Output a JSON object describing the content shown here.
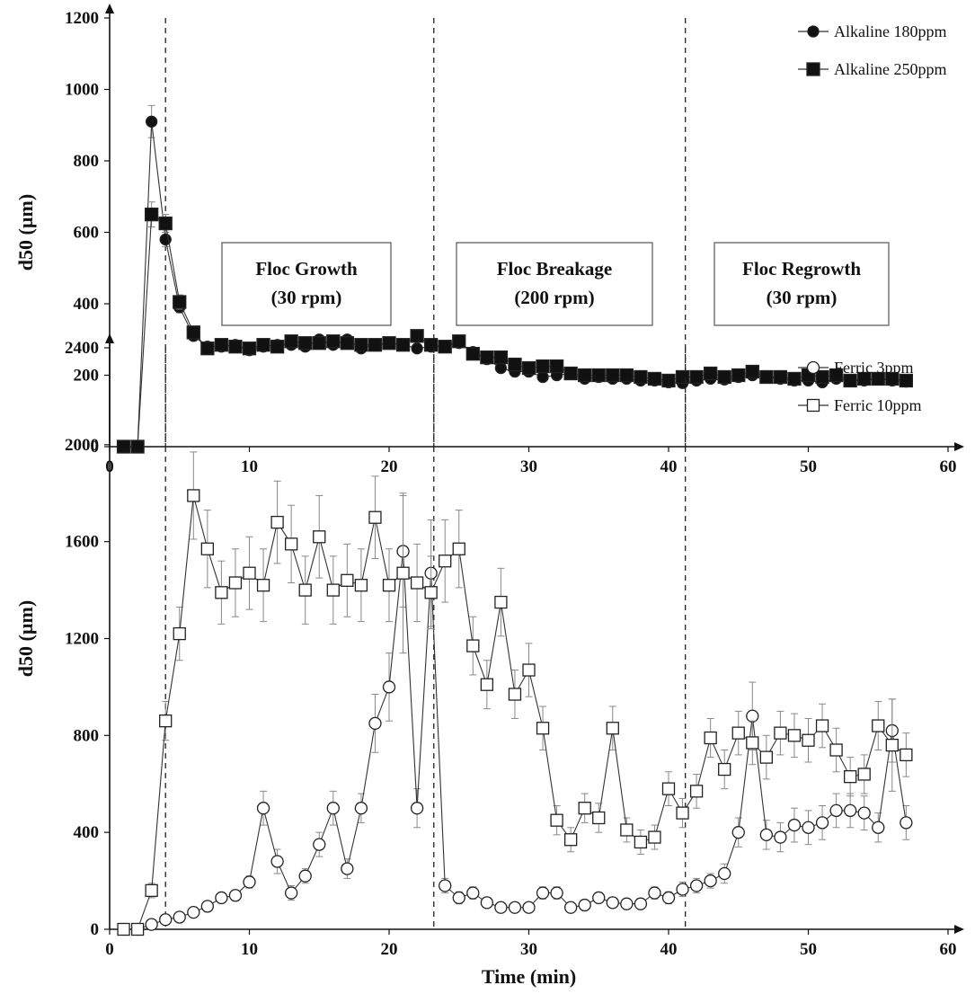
{
  "chart_data": [
    {
      "type": "line",
      "title": "",
      "xlabel": "",
      "ylabel": "d50 (µm)",
      "xlim": [
        0,
        60
      ],
      "ylim": [
        0,
        1200
      ],
      "xticks": [
        0,
        10,
        20,
        30,
        40,
        50,
        60
      ],
      "yticks": [
        0,
        200,
        400,
        600,
        800,
        1000,
        1200
      ],
      "grid": false,
      "legend": "top-right",
      "phase_lines_x": [
        4,
        23.2,
        41.2
      ],
      "annotations": [
        {
          "line1": "Floc Growth",
          "line2": "(30 rpm)"
        },
        {
          "line1": "Floc Breakage",
          "line2": "(200 rpm)"
        },
        {
          "line1": "Floc Regrowth",
          "line2": "(30 rpm)"
        }
      ],
      "x": [
        1,
        2,
        3,
        4,
        5,
        6,
        7,
        8,
        9,
        10,
        11,
        12,
        13,
        14,
        15,
        16,
        17,
        18,
        19,
        20,
        21,
        22,
        23,
        24,
        25,
        26,
        27,
        28,
        29,
        30,
        31,
        32,
        33,
        34,
        35,
        36,
        37,
        38,
        39,
        40,
        41,
        42,
        43,
        44,
        45,
        46,
        47,
        48,
        49,
        50,
        51,
        52,
        53,
        54,
        55,
        56,
        57
      ],
      "series": [
        {
          "name": "Alkaline 180ppm",
          "marker": "circle-filled",
          "values": [
            0,
            0,
            910,
            580,
            390,
            310,
            280,
            280,
            285,
            270,
            280,
            285,
            285,
            280,
            300,
            285,
            300,
            275,
            285,
            290,
            285,
            275,
            280,
            280,
            290,
            265,
            245,
            220,
            210,
            210,
            195,
            200,
            205,
            190,
            195,
            190,
            190,
            185,
            185,
            180,
            178,
            185,
            190,
            188,
            195,
            200,
            195,
            190,
            185,
            185,
            180,
            190,
            185,
            185,
            190,
            185,
            182
          ],
          "errors": [
            0,
            0,
            45,
            20,
            15,
            12,
            10,
            10,
            10,
            10,
            10,
            10,
            10,
            10,
            10,
            10,
            10,
            10,
            10,
            10,
            10,
            10,
            10,
            10,
            10,
            10,
            10,
            10,
            10,
            10,
            10,
            10,
            10,
            10,
            10,
            10,
            10,
            10,
            10,
            10,
            10,
            10,
            10,
            10,
            10,
            10,
            10,
            10,
            10,
            10,
            10,
            10,
            10,
            10,
            10,
            10,
            10
          ]
        },
        {
          "name": "Alkaline 250ppm",
          "marker": "square-filled",
          "values": [
            0,
            0,
            650,
            625,
            405,
            320,
            275,
            285,
            280,
            275,
            285,
            280,
            295,
            290,
            290,
            295,
            290,
            285,
            285,
            290,
            285,
            310,
            285,
            280,
            295,
            260,
            250,
            250,
            230,
            220,
            225,
            225,
            205,
            200,
            200,
            200,
            200,
            195,
            190,
            185,
            195,
            195,
            205,
            195,
            200,
            210,
            195,
            195,
            190,
            200,
            195,
            200,
            185,
            190,
            190,
            190,
            185
          ],
          "errors": [
            0,
            0,
            35,
            25,
            20,
            12,
            10,
            10,
            10,
            10,
            10,
            10,
            10,
            10,
            10,
            10,
            10,
            10,
            10,
            10,
            10,
            10,
            10,
            10,
            10,
            10,
            10,
            10,
            10,
            10,
            10,
            10,
            10,
            10,
            10,
            10,
            10,
            10,
            10,
            10,
            10,
            10,
            10,
            10,
            10,
            10,
            10,
            10,
            10,
            10,
            10,
            10,
            10,
            10,
            10,
            10,
            10
          ]
        }
      ]
    },
    {
      "type": "line",
      "title": "",
      "xlabel": "Time (min)",
      "ylabel": "d50 (µm)",
      "xlim": [
        0,
        60
      ],
      "ylim": [
        0,
        2400
      ],
      "xticks": [
        0,
        10,
        20,
        30,
        40,
        50,
        60
      ],
      "yticks": [
        0,
        400,
        800,
        1200,
        1600,
        2000,
        2400
      ],
      "grid": false,
      "legend": "top-right",
      "phase_lines_x": [
        4,
        23.2,
        41.2
      ],
      "x": [
        1,
        2,
        3,
        4,
        5,
        6,
        7,
        8,
        9,
        10,
        11,
        12,
        13,
        14,
        15,
        16,
        17,
        18,
        19,
        20,
        21,
        22,
        23,
        24,
        25,
        26,
        27,
        28,
        29,
        30,
        31,
        32,
        33,
        34,
        35,
        36,
        37,
        38,
        39,
        40,
        41,
        42,
        43,
        44,
        45,
        46,
        47,
        48,
        49,
        50,
        51,
        52,
        53,
        54,
        55,
        56,
        57
      ],
      "series": [
        {
          "name": "Ferric 3ppm",
          "marker": "circle-open",
          "values": [
            0,
            0,
            20,
            40,
            50,
            70,
            95,
            130,
            140,
            195,
            500,
            280,
            150,
            220,
            350,
            500,
            250,
            500,
            850,
            1000,
            1560,
            500,
            1470,
            180,
            130,
            150,
            110,
            90,
            90,
            90,
            150,
            150,
            90,
            100,
            130,
            110,
            105,
            105,
            150,
            130,
            165,
            180,
            200,
            230,
            400,
            880,
            390,
            380,
            430,
            420,
            440,
            490,
            490,
            480,
            420,
            820,
            440
          ],
          "errors": [
            0,
            0,
            10,
            10,
            10,
            10,
            15,
            20,
            20,
            25,
            70,
            50,
            30,
            30,
            50,
            70,
            40,
            60,
            120,
            140,
            230,
            80,
            220,
            30,
            25,
            25,
            20,
            15,
            15,
            15,
            25,
            25,
            15,
            15,
            20,
            20,
            20,
            20,
            25,
            25,
            30,
            30,
            30,
            40,
            60,
            140,
            60,
            60,
            70,
            70,
            70,
            70,
            70,
            70,
            60,
            130,
            70
          ]
        },
        {
          "name": "Ferric 10ppm",
          "marker": "square-open",
          "values": [
            0,
            0,
            160,
            860,
            1220,
            1790,
            1570,
            1390,
            1430,
            1470,
            1420,
            1680,
            1590,
            1400,
            1620,
            1400,
            1440,
            1420,
            1700,
            1420,
            1470,
            1430,
            1390,
            1520,
            1570,
            1170,
            1010,
            1350,
            970,
            1070,
            830,
            450,
            370,
            500,
            460,
            830,
            410,
            360,
            380,
            580,
            480,
            570,
            790,
            660,
            810,
            770,
            710,
            810,
            800,
            780,
            840,
            740,
            630,
            640,
            840,
            760,
            720
          ],
          "errors": [
            0,
            0,
            30,
            80,
            110,
            180,
            160,
            130,
            140,
            150,
            150,
            170,
            160,
            140,
            170,
            140,
            150,
            150,
            170,
            150,
            330,
            160,
            150,
            170,
            160,
            120,
            100,
            140,
            100,
            110,
            90,
            60,
            50,
            60,
            60,
            90,
            50,
            50,
            50,
            70,
            60,
            70,
            80,
            80,
            90,
            90,
            90,
            90,
            90,
            90,
            90,
            90,
            80,
            80,
            100,
            190,
            90
          ]
        }
      ]
    }
  ]
}
